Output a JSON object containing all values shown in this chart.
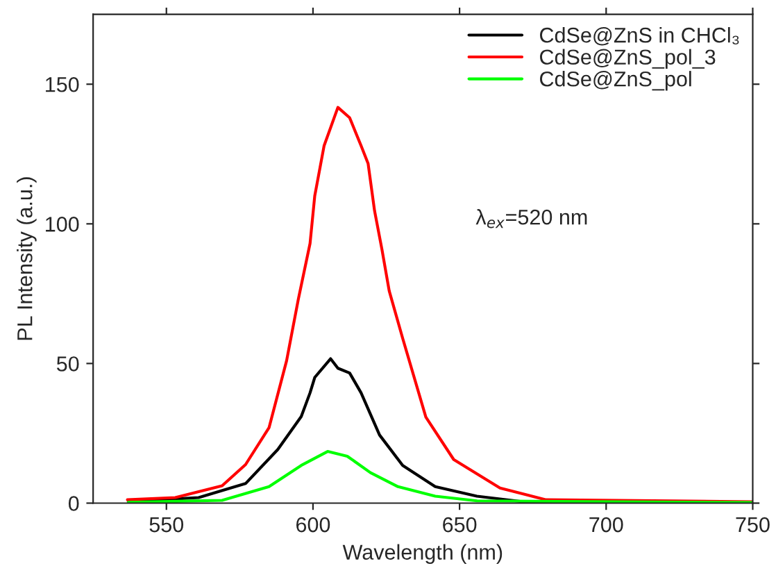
{
  "chart_data": {
    "type": "line",
    "xlabel": "Wavelength (nm)",
    "ylabel": "PL Intensity (a.u.)",
    "xlim": [
      525,
      750
    ],
    "ylim": [
      0,
      175
    ],
    "xticks": [
      550,
      600,
      650,
      700,
      750
    ],
    "yticks": [
      0,
      50,
      100,
      150
    ],
    "grid": false,
    "legend": "top right",
    "marker": "none",
    "line_style": "solid",
    "annotations": [
      "λ$_{ex}$=520 nm"
    ],
    "series": [
      {
        "name": "CdSe@ZnS in CHCl₃",
        "color": "#000000",
        "x": [
          537,
          561,
          577,
          588,
          596,
          599,
          600.6,
          606,
          608.5,
          612.5,
          616.4,
          622.7,
          630.6,
          641.7,
          655.9,
          671.7,
          750
        ],
        "values": [
          0.5,
          2,
          7,
          19.2,
          31,
          39.5,
          45,
          51.7,
          48.3,
          46.6,
          39.5,
          24.4,
          13.5,
          5.9,
          2.5,
          0.5,
          0.3
        ]
      },
      {
        "name": "CdSe@ZnS_pol_3",
        "color": "#ff0000",
        "x": [
          536.7,
          553,
          569,
          577,
          585,
          591,
          595,
          599,
          600.6,
          603.8,
          608.5,
          612.5,
          616.4,
          618.8,
          621,
          623.5,
          626,
          630.6,
          638.5,
          648,
          663.8,
          679.5,
          750
        ],
        "values": [
          1.2,
          2,
          6.2,
          13.8,
          27,
          51,
          73,
          93,
          110,
          128,
          141.7,
          138,
          128,
          121.6,
          104.7,
          91,
          76,
          59,
          30.8,
          15.6,
          5.4,
          1.2,
          0.5
        ]
      },
      {
        "name": "CdSe@ZnS_pol",
        "color": "#00ff00",
        "x": [
          537,
          569,
          585,
          596,
          605,
          611.7,
          619.6,
          629,
          641.7,
          656,
          750
        ],
        "values": [
          0.3,
          1,
          5.9,
          13.5,
          18.5,
          16.8,
          10.9,
          5.9,
          2.5,
          0.8,
          0.2
        ]
      }
    ]
  }
}
